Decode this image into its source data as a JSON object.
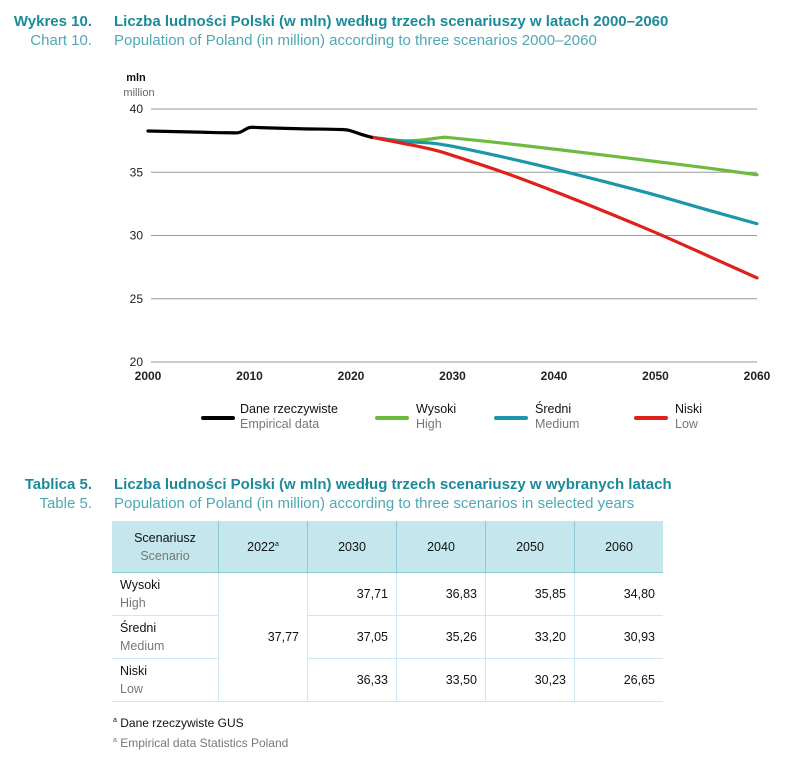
{
  "chart_caption": {
    "label_pl": "Wykres 10.",
    "label_en": "Chart 10.",
    "title_pl": "Liczba ludności Polski (w mln) według trzech scenariuszy w latach 2000–2060",
    "title_en": "Population of Poland (in million) according to three scenarios 2000–2060"
  },
  "chart_data": {
    "type": "line",
    "title": "Liczba ludności Polski (w mln) według trzech scenariuszy w latach 2000–2060",
    "subtitle": "Population of Poland (in million) according to three scenarios 2000–2060",
    "xlabel": "",
    "ylabel_pl": "mln",
    "ylabel_en": "million",
    "xlim": [
      2000,
      2060
    ],
    "ylim": [
      20,
      40
    ],
    "x_ticks": [
      "2000",
      "2010",
      "2020",
      "2030",
      "2040",
      "2050",
      "2060"
    ],
    "y_ticks": [
      "20",
      "25",
      "30",
      "35",
      "40"
    ],
    "grid": "horizontal",
    "legend_position": "bottom",
    "series": [
      {
        "name": "Dane rzeczywiste",
        "name_en": "Empirical data",
        "color": "#000000",
        "points": [
          [
            2000,
            38.26
          ],
          [
            2005,
            38.17
          ],
          [
            2008,
            38.12
          ],
          [
            2009,
            38.15
          ],
          [
            2010,
            38.53
          ],
          [
            2011,
            38.53
          ],
          [
            2015,
            38.44
          ],
          [
            2019,
            38.38
          ],
          [
            2020,
            38.27
          ],
          [
            2021,
            38.0
          ],
          [
            2022,
            37.77
          ]
        ]
      },
      {
        "name": "Wysoki",
        "name_en": "High",
        "color": "#6cbb3c",
        "points": [
          [
            2022,
            37.77
          ],
          [
            2025,
            37.5
          ],
          [
            2027,
            37.55
          ],
          [
            2029,
            37.75
          ],
          [
            2030,
            37.71
          ],
          [
            2035,
            37.3
          ],
          [
            2040,
            36.83
          ],
          [
            2045,
            36.35
          ],
          [
            2050,
            35.85
          ],
          [
            2055,
            35.35
          ],
          [
            2060,
            34.8
          ]
        ]
      },
      {
        "name": "Średni",
        "name_en": "Medium",
        "color": "#1a97a8",
        "points": [
          [
            2022,
            37.77
          ],
          [
            2025,
            37.45
          ],
          [
            2028,
            37.3
          ],
          [
            2030,
            37.05
          ],
          [
            2035,
            36.2
          ],
          [
            2040,
            35.26
          ],
          [
            2045,
            34.25
          ],
          [
            2050,
            33.2
          ],
          [
            2055,
            32.05
          ],
          [
            2060,
            30.93
          ]
        ]
      },
      {
        "name": "Niski",
        "name_en": "Low",
        "color": "#e0201b",
        "points": [
          [
            2022,
            37.77
          ],
          [
            2025,
            37.3
          ],
          [
            2028,
            36.8
          ],
          [
            2030,
            36.33
          ],
          [
            2035,
            35.0
          ],
          [
            2040,
            33.5
          ],
          [
            2045,
            31.9
          ],
          [
            2050,
            30.23
          ],
          [
            2055,
            28.45
          ],
          [
            2060,
            26.65
          ]
        ]
      }
    ]
  },
  "table_caption": {
    "label_pl": "Tablica 5.",
    "label_en": "Table 5.",
    "title_pl": "Liczba ludności Polski (w mln) według trzech scenariuszy w wybranych latach",
    "title_en": "Population of Poland (in million) according to three scenarios in selected years"
  },
  "table": {
    "header": {
      "scenario_pl": "Scenariusz",
      "scenario_en": "Scenario",
      "years": [
        "2022",
        "2030",
        "2040",
        "2050",
        "2060"
      ],
      "footnote_mark": "a"
    },
    "base_value": "37,77",
    "rows": [
      {
        "name_pl": "Wysoki",
        "name_en": "High",
        "values": [
          "37,71",
          "36,83",
          "35,85",
          "34,80"
        ]
      },
      {
        "name_pl": "Średni",
        "name_en": "Medium",
        "values": [
          "37,05",
          "35,26",
          "33,20",
          "30,93"
        ]
      },
      {
        "name_pl": "Niski",
        "name_en": "Low",
        "values": [
          "36,33",
          "33,50",
          "30,23",
          "26,65"
        ]
      }
    ]
  },
  "footnotes": {
    "mark": "a",
    "pl": "Dane rzeczywiste GUS",
    "en": "Empirical data Statistics Poland"
  }
}
